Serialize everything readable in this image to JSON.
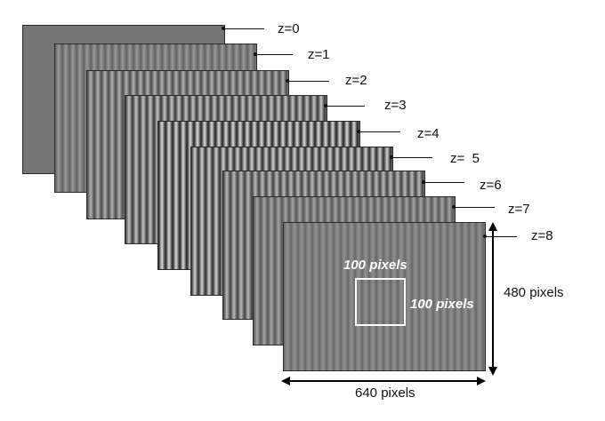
{
  "frames": [
    {
      "label": "z=0",
      "contrast": 0.0,
      "color": "#757575"
    },
    {
      "label": "z=1",
      "contrast": 0.25
    },
    {
      "label": "z=2",
      "contrast": 0.45
    },
    {
      "label": "z=3",
      "contrast": 0.65
    },
    {
      "label": "z=4",
      "contrast": 0.85
    },
    {
      "label": "z=  5",
      "contrast": 0.75
    },
    {
      "label": "z=6",
      "contrast": 0.55
    },
    {
      "label": "z=7",
      "contrast": 0.35
    },
    {
      "label": "z=8",
      "contrast": 0.18
    }
  ],
  "roi": {
    "width_label": "100 pixels",
    "height_label": "100 pixels"
  },
  "dimensions": {
    "width_label": "640 pixels",
    "height_label": "480 pixels"
  }
}
